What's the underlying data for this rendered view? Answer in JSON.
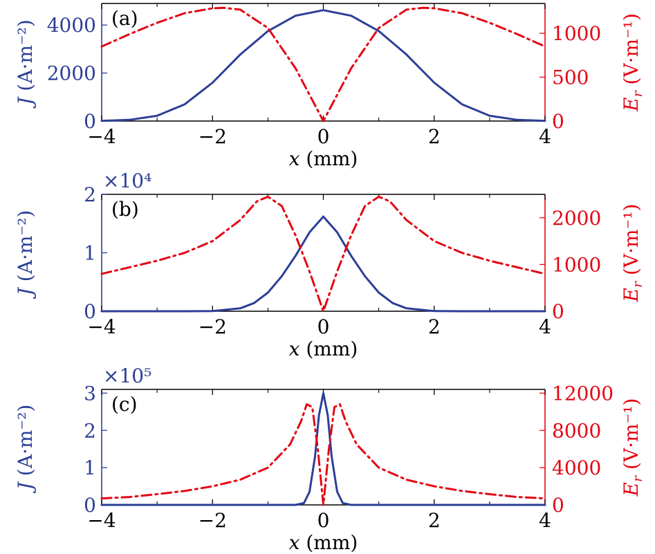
{
  "colors": {
    "J": "#2c3f96",
    "Er": "#e30613"
  },
  "chart_data": [
    {
      "type": "line",
      "panel_label": "(a)",
      "xlabel": "x (mm)",
      "ylabel_left": "J (A·m⁻²)",
      "ylabel_right": "E_r (V·m⁻¹)",
      "xlim": [
        -4,
        4
      ],
      "xticks": [
        "−4",
        "−2",
        "0",
        "2",
        "4"
      ],
      "ylim_left": [
        0,
        4900
      ],
      "yticks_left": [
        "0",
        "2000",
        "4000"
      ],
      "ylim_right": [
        0,
        1340
      ],
      "yticks_right": [
        "0",
        "500",
        "1000"
      ],
      "left_multiplier": "",
      "series": [
        {
          "axis": "left",
          "style": "solid",
          "color": "#2c3f96",
          "x": [
            -4,
            -3.5,
            -3,
            -2.5,
            -2,
            -1.5,
            -1,
            -0.5,
            0,
            0.5,
            1,
            1.5,
            2,
            2.5,
            3,
            3.5,
            4
          ],
          "y": [
            8,
            50,
            220,
            700,
            1600,
            2770,
            3750,
            4390,
            4620,
            4390,
            3750,
            2770,
            1600,
            700,
            220,
            50,
            8
          ]
        },
        {
          "axis": "right",
          "style": "dashdot",
          "color": "#e30613",
          "x": [
            -4,
            -3.5,
            -3,
            -2.5,
            -2,
            -1.8,
            -1.5,
            -1,
            -0.5,
            0,
            0.5,
            1,
            1.5,
            1.8,
            2,
            2.5,
            3,
            3.5,
            4
          ],
          "y": [
            850,
            990,
            1120,
            1230,
            1285,
            1290,
            1270,
            1060,
            600,
            0,
            600,
            1060,
            1270,
            1290,
            1285,
            1230,
            1120,
            990,
            850
          ]
        }
      ]
    },
    {
      "type": "line",
      "panel_label": "(b)",
      "xlabel": "x (mm)",
      "ylabel_left": "J (A·m⁻²)",
      "ylabel_right": "E_r (V·m⁻¹)",
      "xlim": [
        -4,
        4
      ],
      "xticks": [
        "−4",
        "−2",
        "0",
        "2",
        "4"
      ],
      "ylim_left": [
        0,
        2
      ],
      "yticks_left": [
        "0",
        "1",
        "2"
      ],
      "ylim_right": [
        0,
        2500
      ],
      "yticks_right": [
        "0",
        "1000",
        "2000"
      ],
      "left_multiplier": "×10⁴",
      "series": [
        {
          "axis": "left",
          "style": "solid",
          "color": "#2c3f96",
          "x": [
            -4,
            -2.5,
            -2,
            -1.5,
            -1.25,
            -1,
            -0.75,
            -0.5,
            -0.25,
            0,
            0.25,
            0.5,
            0.75,
            1,
            1.25,
            1.5,
            2,
            2.5,
            4
          ],
          "y": [
            0,
            0,
            0.004,
            0.05,
            0.14,
            0.32,
            0.6,
            0.95,
            1.35,
            1.62,
            1.35,
            0.95,
            0.6,
            0.32,
            0.14,
            0.05,
            0.004,
            0,
            0
          ]
        },
        {
          "axis": "right",
          "style": "dashdot",
          "color": "#e30613",
          "x": [
            -4,
            -3.5,
            -3,
            -2.5,
            -2,
            -1.5,
            -1.2,
            -1,
            -0.75,
            -0.5,
            -0.25,
            0,
            0.25,
            0.5,
            0.75,
            1,
            1.2,
            1.5,
            2,
            2.5,
            3,
            3.5,
            4
          ],
          "y": [
            800,
            940,
            1080,
            1250,
            1500,
            1950,
            2350,
            2450,
            2250,
            1620,
            850,
            0,
            850,
            1620,
            2250,
            2450,
            2350,
            1950,
            1500,
            1250,
            1080,
            940,
            800
          ]
        }
      ]
    },
    {
      "type": "line",
      "panel_label": "(c)",
      "xlabel": "x (mm)",
      "ylabel_left": "J (A·m⁻²)",
      "ylabel_right": "E_r (V·m⁻¹)",
      "xlim": [
        -4,
        4
      ],
      "xticks": [
        "−4",
        "−2",
        "0",
        "2",
        "4"
      ],
      "ylim_left": [
        0,
        3.1
      ],
      "yticks_left": [
        "0",
        "1",
        "2",
        "3"
      ],
      "ylim_right": [
        0,
        12400
      ],
      "yticks_right": [
        "0",
        "4000",
        "8000",
        "12000"
      ],
      "left_multiplier": "×10⁵",
      "series": [
        {
          "axis": "left",
          "style": "solid",
          "color": "#2c3f96",
          "x": [
            -4,
            -0.5,
            -0.35,
            -0.25,
            -0.15,
            -0.08,
            0,
            0.08,
            0.15,
            0.25,
            0.35,
            0.5,
            4
          ],
          "y": [
            0,
            0,
            0.05,
            0.35,
            1.3,
            2.4,
            3.0,
            2.4,
            1.3,
            0.35,
            0.05,
            0,
            0
          ]
        },
        {
          "axis": "right",
          "style": "dashdot",
          "color": "#e30613",
          "x": [
            -4,
            -3.5,
            -3,
            -2.5,
            -2,
            -1.5,
            -1,
            -0.6,
            -0.4,
            -0.3,
            -0.2,
            -0.1,
            0,
            0.1,
            0.2,
            0.3,
            0.4,
            0.6,
            1,
            1.5,
            2,
            2.5,
            3,
            3.5,
            4
          ],
          "y": [
            700,
            850,
            1150,
            1500,
            2000,
            2700,
            4000,
            6500,
            9000,
            10800,
            10500,
            6000,
            0,
            6000,
            10500,
            10800,
            9000,
            6500,
            4000,
            2700,
            2000,
            1500,
            1150,
            850,
            700
          ]
        }
      ]
    }
  ]
}
